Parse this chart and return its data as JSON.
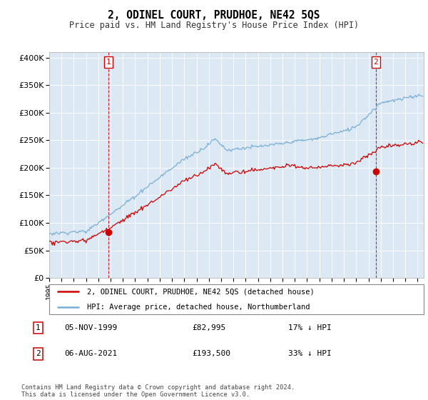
{
  "title": "2, ODINEL COURT, PRUDHOE, NE42 5QS",
  "subtitle": "Price paid vs. HM Land Registry's House Price Index (HPI)",
  "hpi_color": "#7bafd4",
  "price_color": "#cc0000",
  "chart_bg": "#dce9f5",
  "legend_label_price": "2, ODINEL COURT, PRUDHOE, NE42 5QS (detached house)",
  "legend_label_hpi": "HPI: Average price, detached house, Northumberland",
  "annotation1_label": "1",
  "annotation1_date": "05-NOV-1999",
  "annotation1_price": "£82,995",
  "annotation1_hpi": "17% ↓ HPI",
  "annotation2_label": "2",
  "annotation2_date": "06-AUG-2021",
  "annotation2_price": "£193,500",
  "annotation2_hpi": "33% ↓ HPI",
  "footer": "Contains HM Land Registry data © Crown copyright and database right 2024.\nThis data is licensed under the Open Government Licence v3.0.",
  "ylim_min": 0,
  "ylim_max": 410000,
  "sale1_year": 1999.84,
  "sale1_value": 82995,
  "sale2_year": 2021.59,
  "sale2_value": 193500,
  "xmin": 1995.0,
  "xmax": 2025.5
}
